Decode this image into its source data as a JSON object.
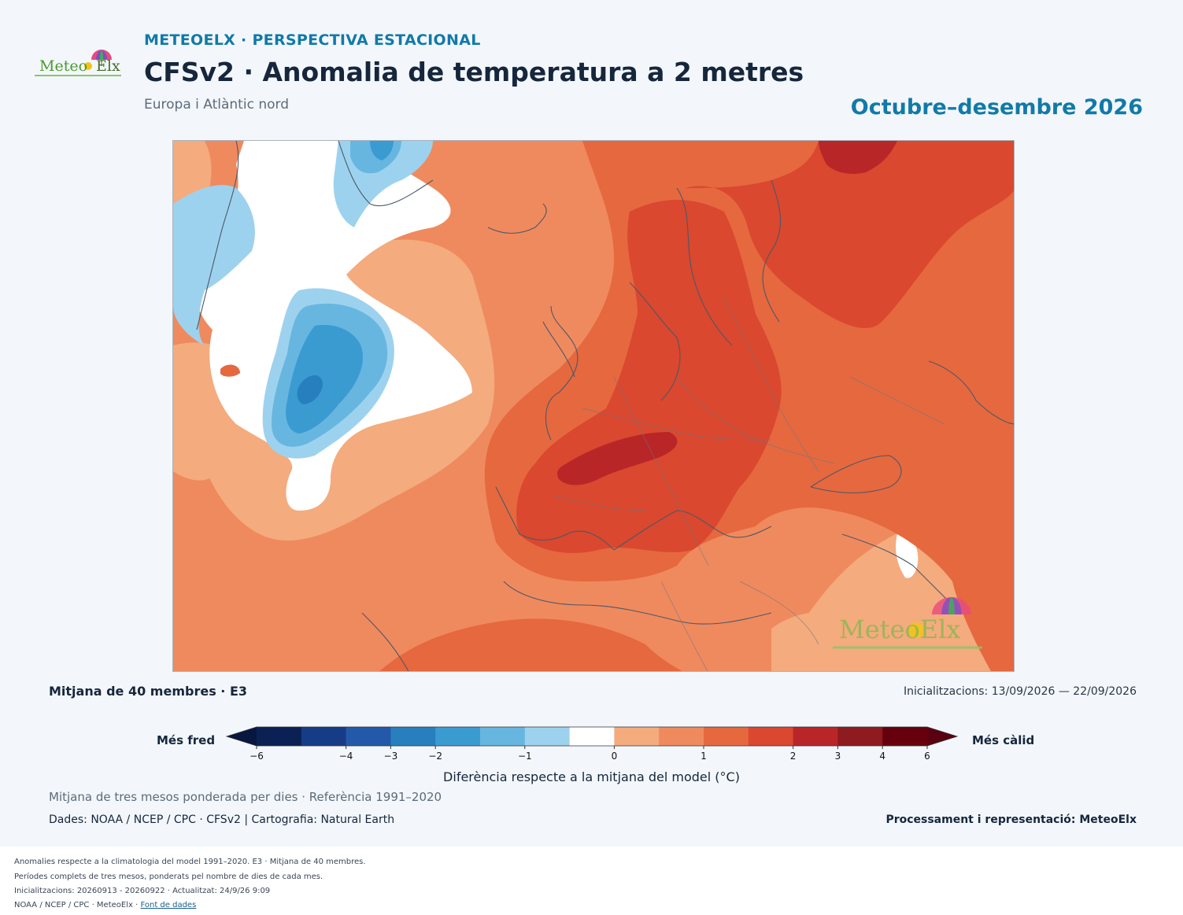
{
  "header": {
    "kicker": "METEOELX · PERSPECTIVA ESTACIONAL",
    "title": "CFSv2 · Anomalia de temperatura a 2 metres",
    "subtitle": "Europa i Atlàntic nord",
    "period": "Octubre–desembre 2026"
  },
  "logo": {
    "text_left": "Meteo",
    "text_right": "Elx"
  },
  "map": {
    "watermark_text": "MeteoElx",
    "colors": {
      "land_outline": "#4d5866",
      "blue_1": "#9dd2ee",
      "blue_2": "#67b6e0",
      "blue_3": "#3a9bd1",
      "blue_4": "#2780bd",
      "white": "#ffffff",
      "red_1": "#f4ab7e",
      "red_2": "#ef8a5e",
      "red_3": "#e6683f",
      "red_4": "#d9482f",
      "red_5": "#b92628"
    }
  },
  "info": {
    "members": "Mitjana de 40 membres · E3",
    "initializations": "Inicialitzacions: 13/09/2026 — 22/09/2026"
  },
  "colorbar": {
    "left_label": "Més fred",
    "right_label": "Més càlid",
    "title": "Diferència respecte a la mitjana del model (°C)",
    "ticks": [
      "−6",
      "−4",
      "−3",
      "−2",
      "−1",
      "0",
      "1",
      "2",
      "3",
      "4",
      "6"
    ],
    "colors": [
      "#0b2154",
      "#173c87",
      "#2359a8",
      "#2780bd",
      "#3a9bd1",
      "#67b6e0",
      "#9dd2ee",
      "#ffffff",
      "#f4ab7e",
      "#ef8a5e",
      "#e6683f",
      "#d9482f",
      "#b92628",
      "#8e1b20",
      "#67000d"
    ],
    "under_color": "#08173f",
    "over_color": "#5a0010"
  },
  "notes": {
    "weighting": "Mitjana de tres mesos ponderada per dies · Referència 1991–2020",
    "data_source": "Dades: NOAA / NCEP / CPC · CFSv2 | Cartografia: Natural Earth",
    "processing": "Processament i representació: MeteoElx"
  },
  "footer": {
    "line1": "Anomalies respecte a la climatologia del model 1991–2020. E3 · Mitjana de 40 membres.",
    "line2": "Períodes complets de tres mesos, ponderats pel nombre de dies de cada mes.",
    "line3": "Inicialitzacions: 20260913 - 20260922 · Actualitzat: 24/9/26 9:09",
    "line4_prefix": "NOAA / NCEP / CPC · MeteoElx · ",
    "line4_link": "Font de dades"
  }
}
